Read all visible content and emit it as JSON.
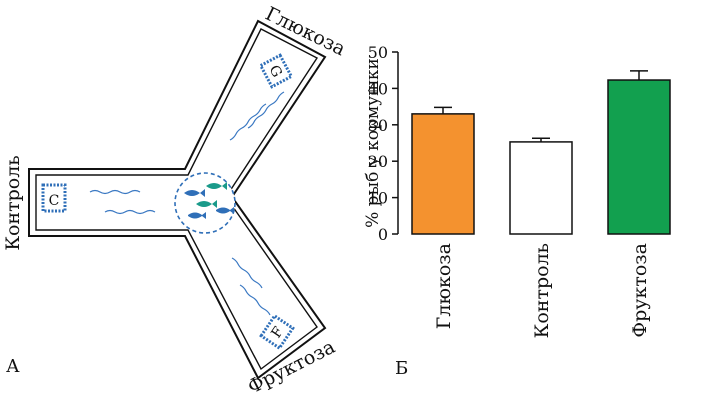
{
  "panel_a": {
    "label": "А",
    "arm_labels": {
      "glucose": "Глюкоза",
      "control": "Контроль",
      "fructose": "Фруктоза"
    },
    "feeder_letters": {
      "glucose": "G",
      "control": "C",
      "fructose": "F"
    },
    "colors": {
      "water": "#3a78c2",
      "fish_blue": "#2f6fb8",
      "fish_teal": "#1a9a8a"
    }
  },
  "panel_b": {
    "label": "Б"
  },
  "chart_data": {
    "type": "bar",
    "categories": [
      "Глюкоза",
      "Контроль",
      "Фруктоза"
    ],
    "values": [
      33,
      25.3,
      42.3
    ],
    "errors": [
      1.8,
      1.0,
      2.5
    ],
    "colors": [
      "#f4922f",
      "#ffffff",
      "#12a04f"
    ],
    "ylabel": "% рыб у кормушки",
    "ylim": [
      0,
      50
    ],
    "yticks": [
      0,
      10,
      20,
      30,
      40,
      50
    ],
    "grid": false
  }
}
